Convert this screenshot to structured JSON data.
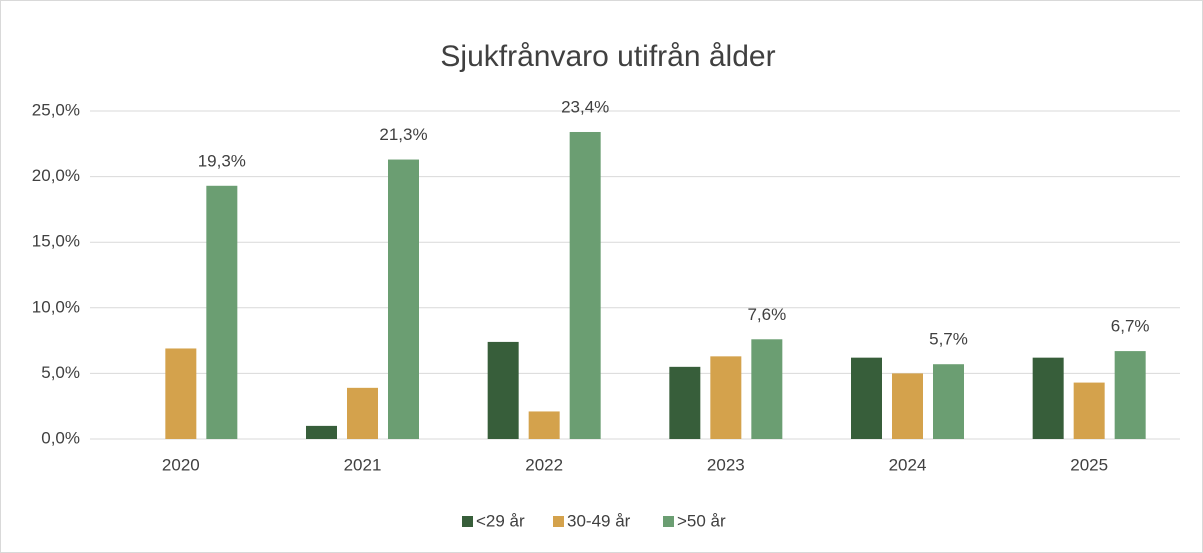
{
  "chart_data": {
    "type": "bar",
    "title": "Sjukfrånvaro utifrån ålder",
    "categories": [
      "2020",
      "2021",
      "2022",
      "2023",
      "2024",
      "2025"
    ],
    "series": [
      {
        "name": "<29 år",
        "color": "#375e3a",
        "values": [
          null,
          1.0,
          7.4,
          5.5,
          6.2,
          6.2
        ]
      },
      {
        "name": "30-49 år",
        "color": "#d4a24c",
        "values": [
          6.9,
          3.9,
          2.1,
          6.3,
          5.0,
          4.3
        ]
      },
      {
        "name": ">50 år",
        "color": "#6b9e72",
        "values": [
          19.3,
          21.3,
          23.4,
          7.6,
          5.7,
          6.7
        ],
        "value_labels": [
          "19,3%",
          "21,3%",
          "23,4%",
          "7,6%",
          "5,7%",
          "6,7%"
        ]
      }
    ],
    "ylim": [
      0,
      25
    ],
    "yticks": [
      {
        "value": 0,
        "label": "0,0%"
      },
      {
        "value": 5,
        "label": "5,0%"
      },
      {
        "value": 10,
        "label": "10,0%"
      },
      {
        "value": 15,
        "label": "15,0%"
      },
      {
        "value": 20,
        "label": "20,0%"
      },
      {
        "value": 25,
        "label": "25,0%"
      }
    ],
    "grid": true,
    "legend": "bottom"
  }
}
